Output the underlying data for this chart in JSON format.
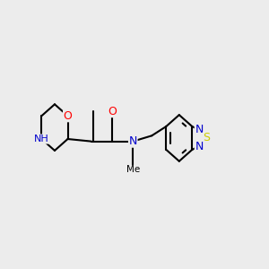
{
  "background_color": "#ececec",
  "bond_color": "#000000",
  "atom_colors": {
    "O": "#ff0000",
    "N": "#0000cc",
    "S": "#cccc00",
    "H": "#008080",
    "C": "#000000"
  },
  "figsize": [
    3.0,
    3.0
  ],
  "dpi": 100,
  "xrange": [
    -3.8,
    4.8
  ],
  "yrange": [
    -2.8,
    2.8
  ]
}
